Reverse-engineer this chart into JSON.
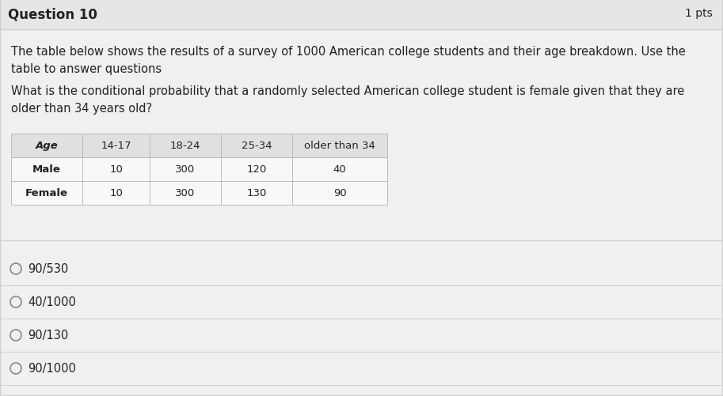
{
  "title_question": "Question 10",
  "pts_label": "1 pts",
  "paragraph1": "The table below shows the results of a survey of 1000 American college students and their age breakdown. Use the\ntable to answer questions",
  "paragraph2": "What is the conditional probability that a randomly selected American college student is female given that they are\nolder than 34 years old?",
  "table_headers": [
    "Age",
    "14-17",
    "18-24",
    "25-34",
    "older than 34"
  ],
  "table_rows": [
    [
      "Male",
      "10",
      "300",
      "120",
      "40"
    ],
    [
      "Female",
      "10",
      "300",
      "130",
      "90"
    ]
  ],
  "options": [
    "90/530",
    "40/1000",
    "90/130",
    "90/1000"
  ],
  "bg_color": "#ebebeb",
  "table_header_bg": "#e0e0e0",
  "table_row_bg": "#f8f8f8",
  "table_border_color": "#bbbbbb",
  "text_color": "#222222",
  "divider_color": "#d0d0d0",
  "option_circle_color": "#888888",
  "title_area_bg": "#e8e8e8",
  "options_area_bg": "#f0f0f0"
}
